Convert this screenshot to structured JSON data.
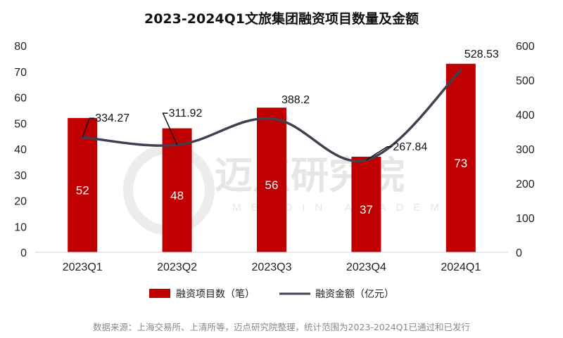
{
  "chart_data": {
    "type": "bar",
    "title": "2023-2024Q1文旅集团融资项目数量及金额",
    "categories": [
      "2023Q1",
      "2023Q2",
      "2023Q3",
      "2023Q4",
      "2024Q1"
    ],
    "series": [
      {
        "name": "融资项目数（笔）",
        "type": "bar",
        "axis": "left",
        "values": [
          52,
          48,
          56,
          37,
          73
        ],
        "color": "#c00000"
      },
      {
        "name": "融资金额（亿元）",
        "type": "line",
        "axis": "right",
        "values": [
          334.27,
          311.92,
          388.2,
          267.84,
          528.53
        ],
        "color": "#3f4050"
      }
    ],
    "y_left": {
      "min": 0,
      "max": 80,
      "ticks": [
        0,
        10,
        20,
        30,
        40,
        50,
        60,
        70,
        80
      ]
    },
    "y_right": {
      "min": 0,
      "max": 600,
      "ticks": [
        0,
        100,
        200,
        300,
        400,
        500,
        600
      ]
    },
    "legend_position": "bottom",
    "source": "数据来源：上海交易所、上清所等，迈点研究院整理，统计范围为2023-2024Q1已通过和已发行"
  },
  "watermark": {
    "text": "迈点研究院",
    "sub": "MEADIN ACADEMY"
  }
}
